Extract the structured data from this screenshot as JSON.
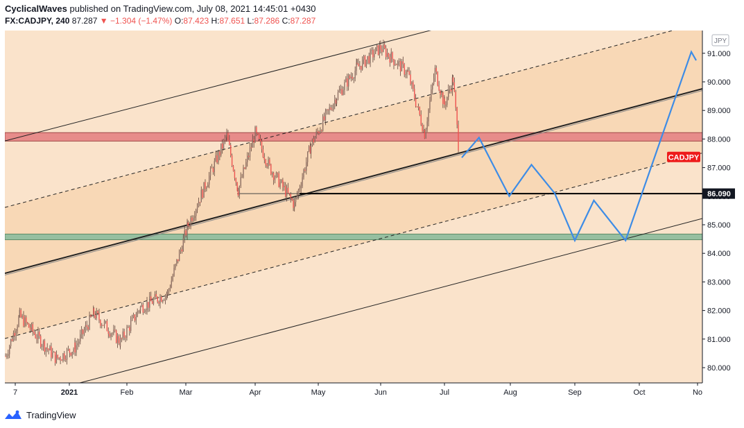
{
  "header": {
    "author": "CyclicalWaves",
    "published": "published on TradingView.com, July 08, 2021 14:45:01 +0430",
    "symbol": "FX:CADJPY, 240",
    "last": "87.287",
    "change": "−1.304 (−1.47%)",
    "o_label": "O:",
    "o_val": "87.423",
    "h_label": "H:",
    "h_val": "87.651",
    "l_label": "L:",
    "l_val": "87.286",
    "c_label": "C:",
    "c_val": "87.287"
  },
  "chart_data": {
    "type": "candlestick",
    "symbol": "CADJPY",
    "currency_label": "JPY",
    "y_ticks": [
      "80.000",
      "81.000",
      "82.000",
      "83.000",
      "84.000",
      "85.000",
      "86.000",
      "87.000",
      "88.000",
      "89.000",
      "90.000",
      "91.000"
    ],
    "y_tick_values": [
      80,
      81,
      82,
      83,
      84,
      85,
      86,
      87,
      88,
      89,
      90,
      91
    ],
    "ylim": [
      79.5,
      92.0
    ],
    "x_ticks": [
      "7",
      "2021",
      "Feb",
      "Mar",
      "Apr",
      "May",
      "Jun",
      "Jul",
      "Aug",
      "Sep",
      "Oct",
      "No"
    ],
    "price_label": "CADJPY",
    "price_value": 87.287,
    "line_label": "86.090",
    "line_value": 86.09,
    "resistance_zone": [
      88.0,
      88.15
    ],
    "support_zone": [
      84.5,
      84.65
    ],
    "price_path": [
      [
        "Dec 7",
        80.4
      ],
      [
        "Dec 18",
        81.8
      ],
      [
        "Dec 28",
        80.3
      ],
      [
        "2021 Jan 4",
        80.7
      ],
      [
        "Jan 14",
        81.9
      ],
      [
        "Jan 28",
        80.9
      ],
      [
        "Feb 8",
        82.1
      ],
      [
        "Feb 22",
        82.6
      ],
      [
        "Mar 2",
        85.0
      ],
      [
        "Mar 19",
        88.1
      ],
      [
        "Mar 24",
        86.2
      ],
      [
        "Apr 1",
        88.2
      ],
      [
        "Apr 8",
        87.0
      ],
      [
        "Apr 20",
        85.7
      ],
      [
        "Apr 28",
        87.8
      ],
      [
        "May 10",
        89.5
      ],
      [
        "May 20",
        90.5
      ],
      [
        "Jun 1",
        91.2
      ],
      [
        "Jun 14",
        90.3
      ],
      [
        "Jun 22",
        88.2
      ],
      [
        "Jun 27",
        90.4
      ],
      [
        "Jul 1",
        89.2
      ],
      [
        "Jul 5",
        90.1
      ],
      [
        "Jul 8",
        87.3
      ]
    ],
    "forecast_path": [
      [
        "Jul 8",
        87.35
      ],
      [
        "Jul 17",
        88.05
      ],
      [
        "Jul 31",
        86.0
      ],
      [
        "Aug 11",
        87.1
      ],
      [
        "Aug 22",
        86.1
      ],
      [
        "Sep 1",
        84.45
      ],
      [
        "Sep 10",
        85.85
      ],
      [
        "Sep 25",
        84.45
      ],
      [
        "Oct 31",
        91.05
      ],
      [
        "Nov 1",
        90.75
      ]
    ]
  },
  "footer": {
    "brand": "TradingView"
  },
  "colors": {
    "band_inner": "#f8d8b6",
    "band_outer": "#fae3cb",
    "resistance": "#e78c8a",
    "support": "#96bfa0",
    "forecast": "#3d8ce6",
    "price_label_bg": "#ee1b1b"
  }
}
